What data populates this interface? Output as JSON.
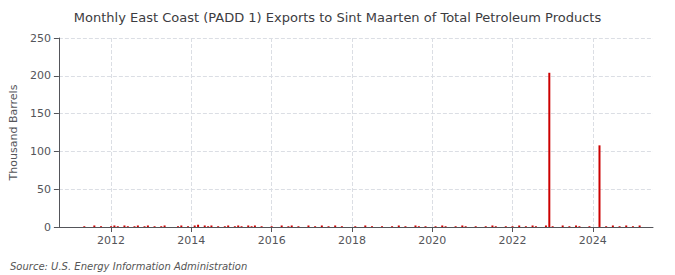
{
  "chart_data": {
    "type": "bar",
    "title": "Monthly East Coast (PADD 1) Exports to Sint Maarten of Total Petroleum Products",
    "ylabel": "Thousand Barrels",
    "source": "Source: U.S. Energy Information Administration",
    "color": "#cc0000",
    "x": [
      2011.0,
      2011.083,
      2011.167,
      2011.25,
      2011.333,
      2011.417,
      2011.5,
      2011.583,
      2011.667,
      2011.75,
      2011.833,
      2011.917,
      2012.0,
      2012.083,
      2012.167,
      2012.25,
      2012.333,
      2012.417,
      2012.5,
      2012.583,
      2012.667,
      2012.75,
      2012.833,
      2012.917,
      2013.0,
      2013.083,
      2013.167,
      2013.25,
      2013.333,
      2013.417,
      2013.5,
      2013.583,
      2013.667,
      2013.75,
      2013.833,
      2013.917,
      2014.0,
      2014.083,
      2014.167,
      2014.25,
      2014.333,
      2014.417,
      2014.5,
      2014.583,
      2014.667,
      2014.75,
      2014.833,
      2014.917,
      2015.0,
      2015.083,
      2015.167,
      2015.25,
      2015.333,
      2015.417,
      2015.5,
      2015.583,
      2015.667,
      2015.75,
      2015.833,
      2015.917,
      2016.0,
      2016.083,
      2016.167,
      2016.25,
      2016.333,
      2016.417,
      2016.5,
      2016.583,
      2016.667,
      2016.75,
      2016.833,
      2016.917,
      2017.0,
      2017.083,
      2017.167,
      2017.25,
      2017.333,
      2017.417,
      2017.5,
      2017.583,
      2017.667,
      2017.75,
      2017.833,
      2017.917,
      2018.0,
      2018.083,
      2018.167,
      2018.25,
      2018.333,
      2018.417,
      2018.5,
      2018.583,
      2018.667,
      2018.75,
      2018.833,
      2018.917,
      2019.0,
      2019.083,
      2019.167,
      2019.25,
      2019.333,
      2019.417,
      2019.5,
      2019.583,
      2019.667,
      2019.75,
      2019.833,
      2019.917,
      2020.0,
      2020.083,
      2020.167,
      2020.25,
      2020.333,
      2020.417,
      2020.5,
      2020.583,
      2020.667,
      2020.75,
      2020.833,
      2020.917,
      2021.0,
      2021.083,
      2021.167,
      2021.25,
      2021.333,
      2021.417,
      2021.5,
      2021.583,
      2021.667,
      2021.75,
      2021.833,
      2021.917,
      2022.0,
      2022.083,
      2022.167,
      2022.25,
      2022.333,
      2022.417,
      2022.5,
      2022.583,
      2022.667,
      2022.75,
      2022.833,
      2022.917,
      2023.0,
      2023.083,
      2023.167,
      2023.25,
      2023.333,
      2023.417,
      2023.5,
      2023.583,
      2023.667,
      2023.75,
      2023.833,
      2023.917,
      2024.0,
      2024.083,
      2024.167,
      2024.25,
      2024.333,
      2024.417,
      2024.5,
      2024.583,
      2024.667,
      2024.75,
      2024.833,
      2024.917,
      2025.0,
      2025.083,
      2025.167
    ],
    "values": [
      0,
      0,
      0,
      0,
      1,
      0,
      0,
      2,
      0,
      1,
      0,
      0,
      1,
      2,
      1,
      0,
      2,
      1,
      0,
      1,
      2,
      0,
      1,
      2,
      0,
      1,
      0,
      1,
      2,
      0,
      0,
      0,
      1,
      2,
      0,
      1,
      0,
      2,
      3,
      0,
      2,
      1,
      2,
      0,
      1,
      0,
      1,
      2,
      0,
      1,
      2,
      1,
      0,
      2,
      1,
      2,
      0,
      1,
      0,
      0,
      1,
      0,
      0,
      2,
      0,
      1,
      2,
      0,
      1,
      0,
      0,
      2,
      0,
      1,
      0,
      2,
      0,
      1,
      0,
      2,
      0,
      1,
      0,
      0,
      0,
      1,
      0,
      0,
      2,
      0,
      1,
      0,
      0,
      1,
      0,
      0,
      1,
      0,
      2,
      0,
      1,
      0,
      0,
      2,
      1,
      0,
      1,
      0,
      0,
      1,
      0,
      2,
      1,
      0,
      0,
      1,
      0,
      2,
      1,
      0,
      0,
      1,
      0,
      0,
      1,
      0,
      2,
      1,
      0,
      0,
      1,
      0,
      1,
      0,
      2,
      0,
      1,
      0,
      2,
      1,
      0,
      0,
      2,
      204,
      1,
      0,
      0,
      2,
      0,
      1,
      0,
      2,
      1,
      0,
      0,
      1,
      0,
      0,
      108,
      0,
      1,
      0,
      2,
      0,
      1,
      0,
      2,
      0,
      1,
      0,
      2
    ],
    "xlim": [
      2010.7,
      2025.5
    ],
    "xticks": [
      2012,
      2014,
      2016,
      2018,
      2020,
      2022,
      2024
    ],
    "ylim": [
      0,
      250
    ],
    "yticks": [
      0,
      50,
      100,
      150,
      200,
      250
    ],
    "grid": true
  }
}
